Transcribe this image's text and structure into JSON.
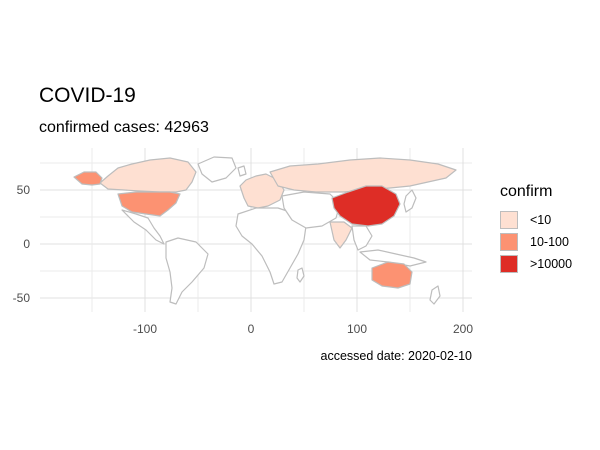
{
  "title": "COVID-19",
  "subtitle": "confirmed cases: 42963",
  "caption": "accessed date: 2020-02-10",
  "legend": {
    "title": "confirm",
    "items": [
      {
        "label": "<10",
        "color": "#fee0d2"
      },
      {
        "label": "10-100",
        "color": "#fc9272"
      },
      {
        "label": ">10000",
        "color": "#de2d26"
      }
    ]
  },
  "map": {
    "projection": "equirectangular",
    "x_axis": {
      "ticks": [
        -100,
        0,
        100,
        200
      ],
      "tick_labels": [
        "-100",
        "0",
        "100",
        "200"
      ]
    },
    "y_axis": {
      "ticks": [
        -50,
        0,
        50
      ],
      "tick_labels": [
        "-50",
        "0",
        "50"
      ]
    },
    "border_color": "#bdbdbd",
    "base_fill": "#ffffff",
    "highlighted_regions": [
      {
        "region": "China",
        "class": ">10000"
      },
      {
        "region": "United States",
        "class": "10-100"
      },
      {
        "region": "Australia",
        "class": "10-100"
      },
      {
        "region": "Alaska",
        "class": "10-100"
      },
      {
        "region": "Canada",
        "class": "<10"
      },
      {
        "region": "Russia",
        "class": "<10"
      },
      {
        "region": "India",
        "class": "<10"
      },
      {
        "region": "Europe",
        "class": "<10"
      }
    ]
  }
}
